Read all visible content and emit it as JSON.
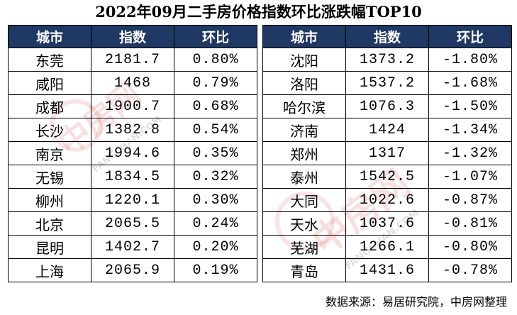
{
  "title": "2022年09月二手房价格指数环比涨跌幅TOP10",
  "headers": {
    "city": "城市",
    "index": "指数",
    "mom": "环比"
  },
  "watermark": {
    "brand": "中房网",
    "url": "FANGCHAN.COM"
  },
  "rising": [
    {
      "city": "东莞",
      "index": "2181.7",
      "mom": "0.80%"
    },
    {
      "city": "咸阳",
      "index": "1468",
      "mom": "0.79%"
    },
    {
      "city": "成都",
      "index": "1900.7",
      "mom": "0.68%"
    },
    {
      "city": "长沙",
      "index": "1382.8",
      "mom": "0.54%"
    },
    {
      "city": "南京",
      "index": "1994.6",
      "mom": "0.35%"
    },
    {
      "city": "无锡",
      "index": "1834.5",
      "mom": "0.32%"
    },
    {
      "city": "柳州",
      "index": "1220.1",
      "mom": "0.30%"
    },
    {
      "city": "北京",
      "index": "2065.5",
      "mom": "0.24%"
    },
    {
      "city": "昆明",
      "index": "1402.7",
      "mom": "0.20%"
    },
    {
      "city": "上海",
      "index": "2065.9",
      "mom": "0.19%"
    }
  ],
  "falling": [
    {
      "city": "沈阳",
      "index": "1373.2",
      "mom": "-1.80%"
    },
    {
      "city": "洛阳",
      "index": "1537.2",
      "mom": "-1.68%"
    },
    {
      "city": "哈尔滨",
      "index": "1076.3",
      "mom": "-1.50%"
    },
    {
      "city": "济南",
      "index": "1424",
      "mom": "-1.34%"
    },
    {
      "city": "郑州",
      "index": "1317",
      "mom": "-1.32%"
    },
    {
      "city": "泰州",
      "index": "1542.5",
      "mom": "-1.07%"
    },
    {
      "city": "大同",
      "index": "1022.6",
      "mom": "-0.87%"
    },
    {
      "city": "天水",
      "index": "1037.6",
      "mom": "-0.81%"
    },
    {
      "city": "芜湖",
      "index": "1266.1",
      "mom": "-0.80%"
    },
    {
      "city": "青岛",
      "index": "1431.6",
      "mom": "-0.78%"
    }
  ],
  "source": "数据来源：易居研究院，中房网整理",
  "colors": {
    "header_bg": "#1f3864",
    "header_text": "#ffffff",
    "border": "#000000",
    "watermark": "#d63838"
  }
}
